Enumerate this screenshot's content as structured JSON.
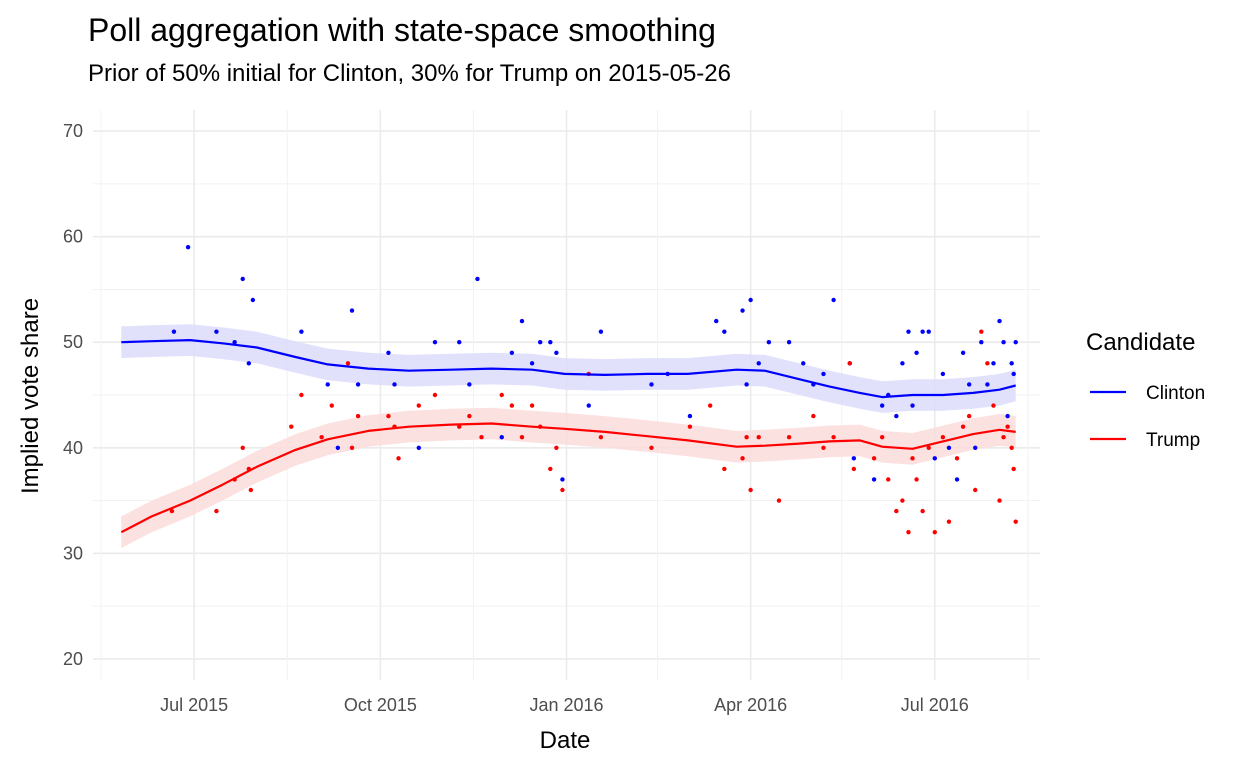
{
  "chart_data": {
    "type": "line",
    "title": "Poll aggregation with state-space smoothing",
    "subtitle": "Prior of 50% initial for Clinton, 30% for Trump on 2015-05-26",
    "xlabel": "Date",
    "ylabel": "Implied vote share",
    "ylim": [
      18,
      72
    ],
    "yticks": [
      20,
      30,
      40,
      50,
      60,
      70
    ],
    "xlim": [
      "2015-05-12",
      "2016-08-22"
    ],
    "xticks": [
      {
        "date": "2015-07-01",
        "label": "Jul 2015"
      },
      {
        "date": "2015-10-01",
        "label": "Oct 2015"
      },
      {
        "date": "2016-01-01",
        "label": "Jan 2016"
      },
      {
        "date": "2016-04-01",
        "label": "Apr 2016"
      },
      {
        "date": "2016-07-01",
        "label": "Jul 2016"
      }
    ],
    "xminor": [
      "2015-05-16",
      "2015-08-16",
      "2015-11-16",
      "2016-02-15",
      "2016-05-16",
      "2016-08-16"
    ],
    "grid": true,
    "legend": {
      "title": "Candidate",
      "position": "right"
    },
    "series": [
      {
        "name": "Clinton",
        "color": "#0000FF",
        "band_color": "#DCDCFC",
        "smooth": [
          [
            "2015-05-26",
            50.0
          ],
          [
            "2015-06-10",
            50.1
          ],
          [
            "2015-06-29",
            50.2
          ],
          [
            "2015-07-15",
            49.9
          ],
          [
            "2015-08-01",
            49.5
          ],
          [
            "2015-08-20",
            48.6
          ],
          [
            "2015-09-05",
            47.9
          ],
          [
            "2015-09-25",
            47.5
          ],
          [
            "2015-10-15",
            47.3
          ],
          [
            "2015-11-05",
            47.4
          ],
          [
            "2015-11-25",
            47.5
          ],
          [
            "2015-12-15",
            47.4
          ],
          [
            "2015-12-31",
            47.0
          ],
          [
            "2016-01-20",
            46.9
          ],
          [
            "2016-02-10",
            47.0
          ],
          [
            "2016-03-01",
            47.0
          ],
          [
            "2016-03-25",
            47.4
          ],
          [
            "2016-04-08",
            47.3
          ],
          [
            "2016-04-25",
            46.5
          ],
          [
            "2016-05-10",
            45.8
          ],
          [
            "2016-05-25",
            45.2
          ],
          [
            "2016-06-05",
            44.8
          ],
          [
            "2016-06-20",
            45.0
          ],
          [
            "2016-07-05",
            45.0
          ],
          [
            "2016-07-20",
            45.2
          ],
          [
            "2016-08-02",
            45.5
          ],
          [
            "2016-08-10",
            45.9
          ]
        ],
        "points": [
          [
            "2015-06-21",
            51
          ],
          [
            "2015-06-28",
            59
          ],
          [
            "2015-07-12",
            51
          ],
          [
            "2015-07-25",
            56
          ],
          [
            "2015-07-30",
            54
          ],
          [
            "2015-07-28",
            48
          ],
          [
            "2015-07-21",
            50
          ],
          [
            "2015-08-23",
            51
          ],
          [
            "2015-09-05",
            46
          ],
          [
            "2015-09-10",
            40
          ],
          [
            "2015-09-17",
            53
          ],
          [
            "2015-09-20",
            46
          ],
          [
            "2015-10-05",
            49
          ],
          [
            "2015-10-08",
            46
          ],
          [
            "2015-10-20",
            40
          ],
          [
            "2015-10-28",
            50
          ],
          [
            "2015-11-09",
            50
          ],
          [
            "2015-11-14",
            46
          ],
          [
            "2015-11-18",
            56
          ],
          [
            "2015-11-30",
            41
          ],
          [
            "2015-12-05",
            49
          ],
          [
            "2015-12-10",
            52
          ],
          [
            "2015-12-15",
            48
          ],
          [
            "2015-12-19",
            50
          ],
          [
            "2015-12-24",
            50
          ],
          [
            "2015-12-27",
            49
          ],
          [
            "2015-12-30",
            37
          ],
          [
            "2016-01-12",
            44
          ],
          [
            "2016-01-18",
            51
          ],
          [
            "2016-02-12",
            46
          ],
          [
            "2016-02-20",
            47
          ],
          [
            "2016-03-02",
            43
          ],
          [
            "2016-03-15",
            52
          ],
          [
            "2016-03-19",
            51
          ],
          [
            "2016-03-28",
            53
          ],
          [
            "2016-04-01",
            54
          ],
          [
            "2016-03-30",
            46
          ],
          [
            "2016-04-05",
            48
          ],
          [
            "2016-04-10",
            50
          ],
          [
            "2016-04-20",
            50
          ],
          [
            "2016-04-27",
            48
          ],
          [
            "2016-05-02",
            46
          ],
          [
            "2016-05-07",
            47
          ],
          [
            "2016-05-12",
            54
          ],
          [
            "2016-05-20",
            48
          ],
          [
            "2016-05-22",
            39
          ],
          [
            "2016-06-01",
            37
          ],
          [
            "2016-06-05",
            44
          ],
          [
            "2016-06-08",
            45
          ],
          [
            "2016-06-12",
            43
          ],
          [
            "2016-06-15",
            48
          ],
          [
            "2016-06-18",
            51
          ],
          [
            "2016-06-20",
            44
          ],
          [
            "2016-06-22",
            49
          ],
          [
            "2016-06-25",
            51
          ],
          [
            "2016-06-28",
            51
          ],
          [
            "2016-07-01",
            39
          ],
          [
            "2016-07-05",
            47
          ],
          [
            "2016-07-08",
            40
          ],
          [
            "2016-07-12",
            37
          ],
          [
            "2016-07-15",
            49
          ],
          [
            "2016-07-18",
            46
          ],
          [
            "2016-07-21",
            40
          ],
          [
            "2016-07-24",
            50
          ],
          [
            "2016-07-27",
            46
          ],
          [
            "2016-07-30",
            48
          ],
          [
            "2016-08-02",
            52
          ],
          [
            "2016-08-04",
            50
          ],
          [
            "2016-08-06",
            43
          ],
          [
            "2016-08-08",
            48
          ],
          [
            "2016-08-09",
            47
          ],
          [
            "2016-08-10",
            50
          ]
        ]
      },
      {
        "name": "Trump",
        "color": "#FF0000",
        "band_color": "#FCDCDC",
        "smooth": [
          [
            "2015-05-26",
            32.0
          ],
          [
            "2015-06-10",
            33.5
          ],
          [
            "2015-06-29",
            35.0
          ],
          [
            "2015-07-15",
            36.5
          ],
          [
            "2015-08-01",
            38.2
          ],
          [
            "2015-08-20",
            39.8
          ],
          [
            "2015-09-05",
            40.8
          ],
          [
            "2015-09-25",
            41.6
          ],
          [
            "2015-10-15",
            42.0
          ],
          [
            "2015-11-05",
            42.2
          ],
          [
            "2015-11-25",
            42.3
          ],
          [
            "2015-12-15",
            42.0
          ],
          [
            "2015-12-31",
            41.8
          ],
          [
            "2016-01-20",
            41.5
          ],
          [
            "2016-02-10",
            41.1
          ],
          [
            "2016-03-01",
            40.7
          ],
          [
            "2016-03-25",
            40.1
          ],
          [
            "2016-04-08",
            40.2
          ],
          [
            "2016-04-25",
            40.4
          ],
          [
            "2016-05-10",
            40.6
          ],
          [
            "2016-05-25",
            40.7
          ],
          [
            "2016-06-05",
            40.1
          ],
          [
            "2016-06-20",
            39.9
          ],
          [
            "2016-07-05",
            40.6
          ],
          [
            "2016-07-20",
            41.3
          ],
          [
            "2016-08-02",
            41.7
          ],
          [
            "2016-08-10",
            41.5
          ]
        ],
        "points": [
          [
            "2015-06-20",
            34
          ],
          [
            "2015-07-12",
            34
          ],
          [
            "2015-07-21",
            37
          ],
          [
            "2015-07-25",
            40
          ],
          [
            "2015-07-28",
            38
          ],
          [
            "2015-07-29",
            36
          ],
          [
            "2015-08-18",
            42
          ],
          [
            "2015-08-23",
            45
          ],
          [
            "2015-09-02",
            41
          ],
          [
            "2015-09-07",
            44
          ],
          [
            "2015-09-15",
            48
          ],
          [
            "2015-09-17",
            40
          ],
          [
            "2015-09-20",
            43
          ],
          [
            "2015-10-05",
            43
          ],
          [
            "2015-10-08",
            42
          ],
          [
            "2015-10-10",
            39
          ],
          [
            "2015-10-20",
            44
          ],
          [
            "2015-10-28",
            45
          ],
          [
            "2015-11-09",
            42
          ],
          [
            "2015-11-14",
            43
          ],
          [
            "2015-11-20",
            41
          ],
          [
            "2015-11-30",
            45
          ],
          [
            "2015-12-05",
            44
          ],
          [
            "2015-12-10",
            41
          ],
          [
            "2015-12-15",
            44
          ],
          [
            "2015-12-19",
            42
          ],
          [
            "2015-12-24",
            38
          ],
          [
            "2015-12-27",
            40
          ],
          [
            "2015-12-30",
            36
          ],
          [
            "2016-01-12",
            47
          ],
          [
            "2016-01-18",
            41
          ],
          [
            "2016-02-12",
            40
          ],
          [
            "2016-03-02",
            42
          ],
          [
            "2016-03-12",
            44
          ],
          [
            "2016-03-19",
            38
          ],
          [
            "2016-03-28",
            39
          ],
          [
            "2016-04-01",
            36
          ],
          [
            "2016-03-30",
            41
          ],
          [
            "2016-04-05",
            41
          ],
          [
            "2016-04-15",
            35
          ],
          [
            "2016-04-20",
            41
          ],
          [
            "2016-05-02",
            43
          ],
          [
            "2016-05-07",
            40
          ],
          [
            "2016-05-12",
            41
          ],
          [
            "2016-05-20",
            48
          ],
          [
            "2016-05-22",
            38
          ],
          [
            "2016-06-01",
            39
          ],
          [
            "2016-06-05",
            41
          ],
          [
            "2016-06-08",
            37
          ],
          [
            "2016-06-12",
            34
          ],
          [
            "2016-06-15",
            35
          ],
          [
            "2016-06-18",
            32
          ],
          [
            "2016-06-20",
            39
          ],
          [
            "2016-06-22",
            37
          ],
          [
            "2016-06-25",
            34
          ],
          [
            "2016-06-28",
            40
          ],
          [
            "2016-07-01",
            32
          ],
          [
            "2016-07-05",
            41
          ],
          [
            "2016-07-08",
            33
          ],
          [
            "2016-07-12",
            39
          ],
          [
            "2016-07-15",
            42
          ],
          [
            "2016-07-18",
            43
          ],
          [
            "2016-07-21",
            36
          ],
          [
            "2016-07-24",
            51
          ],
          [
            "2016-07-27",
            48
          ],
          [
            "2016-07-30",
            44
          ],
          [
            "2016-08-02",
            35
          ],
          [
            "2016-08-04",
            41
          ],
          [
            "2016-08-06",
            42
          ],
          [
            "2016-08-08",
            40
          ],
          [
            "2016-08-09",
            38
          ],
          [
            "2016-08-10",
            33
          ]
        ]
      }
    ]
  }
}
